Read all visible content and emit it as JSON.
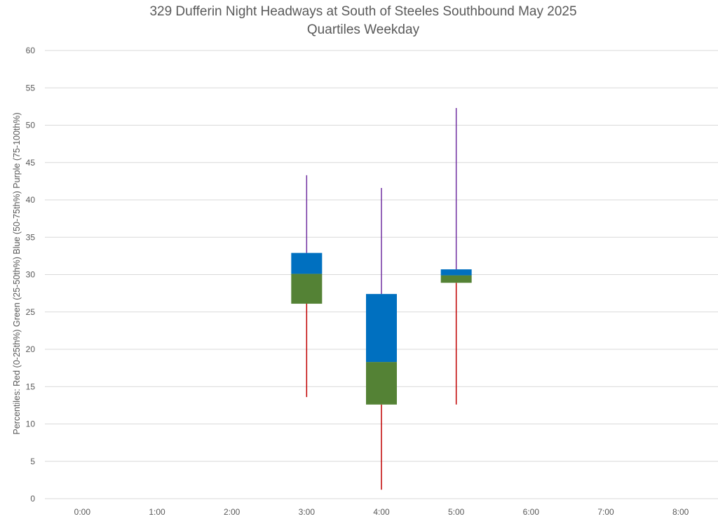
{
  "chart_data": {
    "type": "box",
    "title": "329 Dufferin Night Headways at South of Steeles Southbound May 2025",
    "subtitle": "Quartiles Weekday",
    "xlabel": "",
    "ylabel": "Percentiles:  Red (0-25th%)  Green (25-50th%)  Blue (50-75th%)  Purple (75-100th%)",
    "ylim": [
      0,
      60
    ],
    "yticks": [
      "0",
      "5",
      "10",
      "15",
      "20",
      "25",
      "30",
      "35",
      "40",
      "45",
      "50",
      "55",
      "60"
    ],
    "categories": [
      "0:00",
      "1:00",
      "2:00",
      "3:00",
      "4:00",
      "5:00",
      "6:00",
      "7:00",
      "8:00"
    ],
    "grid": true,
    "colors": {
      "min_to_q1": "#c00000",
      "q1_to_median": "#548235",
      "median_to_q3": "#0070c0",
      "q3_to_max": "#7030a0"
    },
    "series": [
      {
        "x": "3:00",
        "min": 13.6,
        "q1": 26.1,
        "median": 30.1,
        "q3": 32.9,
        "max": 43.3
      },
      {
        "x": "4:00",
        "min": 1.2,
        "q1": 12.6,
        "median": 18.3,
        "q3": 27.4,
        "max": 41.6
      },
      {
        "x": "5:00",
        "min": 12.6,
        "q1": 28.9,
        "median": 29.9,
        "q3": 30.7,
        "max": 52.3
      }
    ]
  }
}
